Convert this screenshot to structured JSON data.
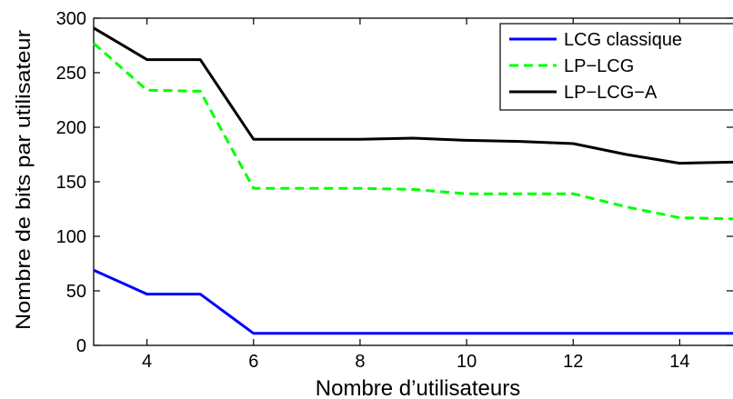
{
  "chart_data": {
    "type": "line",
    "title": "",
    "xlabel": "Nombre d’utilisateurs",
    "ylabel": "Nombre de bits par utilisateur",
    "xlim": [
      3,
      15
    ],
    "ylim": [
      0,
      300
    ],
    "xticks": [
      4,
      6,
      8,
      10,
      12,
      14
    ],
    "yticks": [
      0,
      50,
      100,
      150,
      200,
      250,
      300
    ],
    "x": [
      3,
      4,
      5,
      6,
      7,
      8,
      9,
      10,
      11,
      12,
      13,
      14,
      15
    ],
    "grid": false,
    "legend_position": "top-right",
    "series": [
      {
        "name": "LCG classique",
        "color": "#0000ff",
        "line_style": "solid",
        "values": [
          69,
          47,
          47,
          11,
          11,
          11,
          11,
          11,
          11,
          11,
          11,
          11,
          11
        ]
      },
      {
        "name": "LP−LCG",
        "color": "#00ff00",
        "line_style": "dashed",
        "values": [
          277,
          234,
          233,
          144,
          144,
          144,
          143,
          139,
          139,
          139,
          127,
          117,
          116
        ]
      },
      {
        "name": "LP−LCG−A",
        "color": "#000000",
        "line_style": "solid",
        "values": [
          291,
          262,
          262,
          189,
          189,
          189,
          190,
          188,
          187,
          185,
          175,
          167,
          168
        ]
      }
    ]
  }
}
